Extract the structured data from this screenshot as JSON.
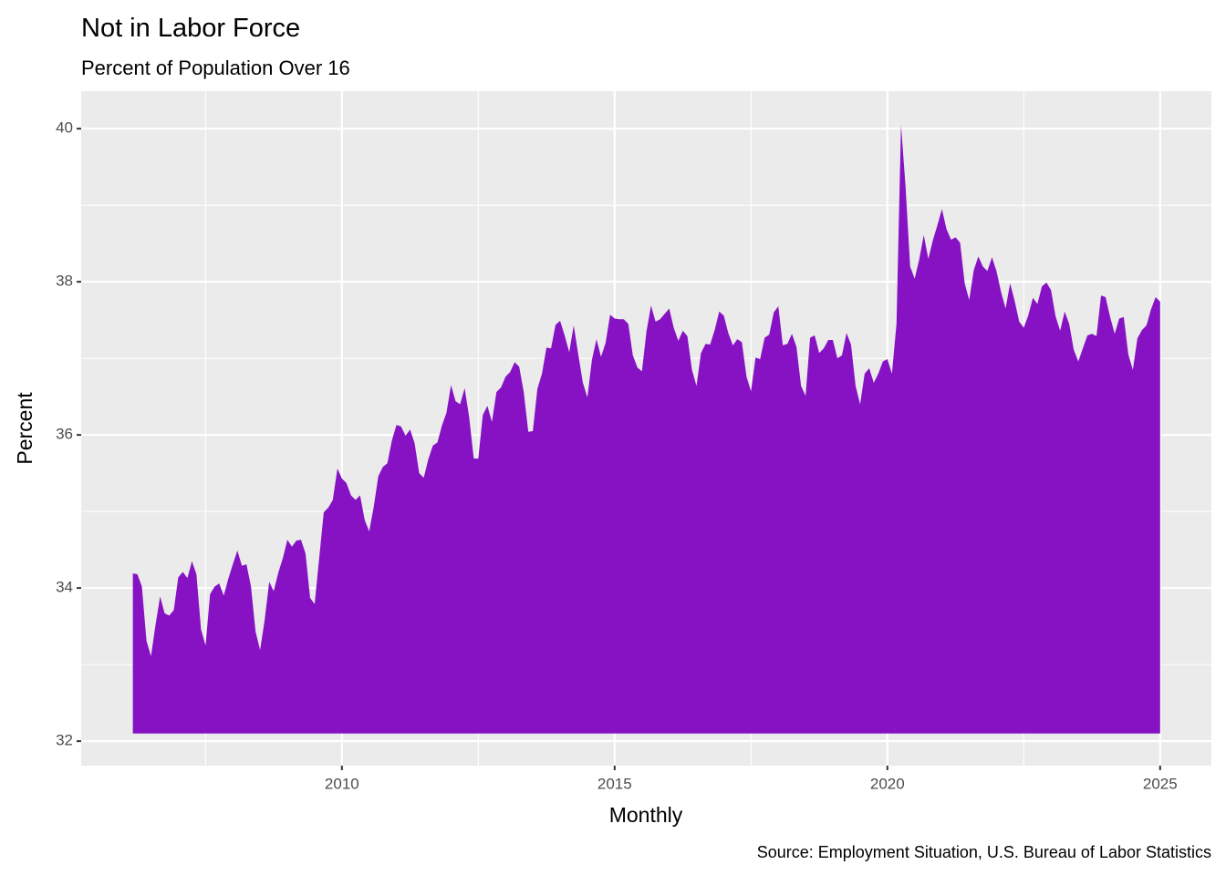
{
  "chart_data": {
    "type": "area",
    "title": "Not in Labor Force",
    "subtitle": "Percent of Population Over 16",
    "x_label": "Monthly",
    "y_label": "Percent",
    "caption": "Source: Employment Situation, U.S. Bureau of Labor Statistics",
    "color": "#8612c4",
    "grid": true,
    "baseline": 32.1,
    "xlim": [
      2005.22,
      2025.94
    ],
    "xticks": [
      2010,
      2015,
      2020,
      2025
    ],
    "ylim": [
      31.68,
      40.49
    ],
    "yticks": [
      32,
      34,
      36,
      38,
      40
    ],
    "x": [
      2006.167,
      2006.25,
      2006.333,
      2006.417,
      2006.5,
      2006.583,
      2006.667,
      2006.75,
      2006.833,
      2006.917,
      2007,
      2007.083,
      2007.167,
      2007.25,
      2007.333,
      2007.417,
      2007.5,
      2007.583,
      2007.667,
      2007.75,
      2007.833,
      2007.917,
      2008,
      2008.083,
      2008.167,
      2008.25,
      2008.333,
      2008.417,
      2008.5,
      2008.583,
      2008.667,
      2008.75,
      2008.833,
      2008.917,
      2009,
      2009.083,
      2009.167,
      2009.25,
      2009.333,
      2009.417,
      2009.5,
      2009.583,
      2009.667,
      2009.75,
      2009.833,
      2009.917,
      2010,
      2010.083,
      2010.167,
      2010.25,
      2010.333,
      2010.417,
      2010.5,
      2010.583,
      2010.667,
      2010.75,
      2010.833,
      2010.917,
      2011,
      2011.083,
      2011.167,
      2011.25,
      2011.333,
      2011.417,
      2011.5,
      2011.583,
      2011.667,
      2011.75,
      2011.833,
      2011.917,
      2012,
      2012.083,
      2012.167,
      2012.25,
      2012.333,
      2012.417,
      2012.5,
      2012.583,
      2012.667,
      2012.75,
      2012.833,
      2012.917,
      2013,
      2013.083,
      2013.167,
      2013.25,
      2013.333,
      2013.417,
      2013.5,
      2013.583,
      2013.667,
      2013.75,
      2013.833,
      2013.917,
      2014,
      2014.083,
      2014.167,
      2014.25,
      2014.333,
      2014.417,
      2014.5,
      2014.583,
      2014.667,
      2014.75,
      2014.833,
      2014.917,
      2015,
      2015.083,
      2015.167,
      2015.25,
      2015.333,
      2015.417,
      2015.5,
      2015.583,
      2015.667,
      2015.75,
      2015.833,
      2015.917,
      2016,
      2016.083,
      2016.167,
      2016.25,
      2016.333,
      2016.417,
      2016.5,
      2016.583,
      2016.667,
      2016.75,
      2016.833,
      2016.917,
      2017,
      2017.083,
      2017.167,
      2017.25,
      2017.333,
      2017.417,
      2017.5,
      2017.583,
      2017.667,
      2017.75,
      2017.833,
      2017.917,
      2018,
      2018.083,
      2018.167,
      2018.25,
      2018.333,
      2018.417,
      2018.5,
      2018.583,
      2018.667,
      2018.75,
      2018.833,
      2018.917,
      2019,
      2019.083,
      2019.167,
      2019.25,
      2019.333,
      2019.417,
      2019.5,
      2019.583,
      2019.667,
      2019.75,
      2019.833,
      2019.917,
      2020,
      2020.083,
      2020.167,
      2020.25,
      2020.333,
      2020.417,
      2020.5,
      2020.583,
      2020.667,
      2020.75,
      2020.833,
      2020.917,
      2021,
      2021.083,
      2021.167,
      2021.25,
      2021.333,
      2021.417,
      2021.5,
      2021.583,
      2021.667,
      2021.75,
      2021.833,
      2021.917,
      2022,
      2022.083,
      2022.167,
      2022.25,
      2022.333,
      2022.417,
      2022.5,
      2022.583,
      2022.667,
      2022.75,
      2022.833,
      2022.917,
      2023,
      2023.083,
      2023.167,
      2023.25,
      2023.333,
      2023.417,
      2023.5,
      2023.583,
      2023.667,
      2023.75,
      2023.833,
      2023.917,
      2024,
      2024.083,
      2024.167,
      2024.25,
      2024.333,
      2024.417,
      2024.5,
      2024.583,
      2024.667,
      2024.75,
      2024.833,
      2024.917,
      2025
    ],
    "values": [
      34.19,
      34.18,
      34.02,
      33.31,
      33.11,
      33.52,
      33.89,
      33.67,
      33.64,
      33.71,
      34.14,
      34.21,
      34.13,
      34.35,
      34.18,
      33.46,
      33.25,
      33.92,
      34.02,
      34.06,
      33.9,
      34.12,
      34.31,
      34.49,
      34.29,
      34.31,
      34.02,
      33.43,
      33.19,
      33.58,
      34.08,
      33.96,
      34.2,
      34.39,
      34.63,
      34.54,
      34.62,
      34.63,
      34.45,
      33.87,
      33.79,
      34.39,
      34.99,
      35.05,
      35.15,
      35.56,
      35.43,
      35.37,
      35.21,
      35.15,
      35.21,
      34.89,
      34.74,
      35.06,
      35.46,
      35.58,
      35.63,
      35.93,
      36.13,
      36.11,
      35.99,
      36.07,
      35.89,
      35.5,
      35.44,
      35.68,
      35.86,
      35.9,
      36.12,
      36.29,
      36.65,
      36.44,
      36.4,
      36.61,
      36.23,
      35.69,
      35.69,
      36.26,
      36.38,
      36.17,
      36.56,
      36.62,
      36.76,
      36.82,
      36.95,
      36.89,
      36.56,
      36.04,
      36.05,
      36.6,
      36.8,
      37.14,
      37.13,
      37.44,
      37.49,
      37.3,
      37.08,
      37.43,
      37.05,
      36.68,
      36.49,
      36.98,
      37.25,
      37.02,
      37.2,
      37.57,
      37.52,
      37.51,
      37.51,
      37.45,
      37.04,
      36.88,
      36.83,
      37.35,
      37.69,
      37.48,
      37.51,
      37.58,
      37.65,
      37.4,
      37.23,
      37.36,
      37.29,
      36.85,
      36.64,
      37.07,
      37.19,
      37.18,
      37.37,
      37.61,
      37.56,
      37.33,
      37.17,
      37.25,
      37.21,
      36.76,
      36.57,
      37.01,
      36.99,
      37.27,
      37.31,
      37.6,
      37.68,
      37.17,
      37.19,
      37.32,
      37.15,
      36.64,
      36.51,
      37.27,
      37.3,
      37.07,
      37.13,
      37.24,
      37.24,
      37.0,
      37.04,
      37.33,
      37.18,
      36.64,
      36.4,
      36.8,
      36.87,
      36.68,
      36.8,
      36.96,
      36.99,
      36.8,
      37.45,
      40.05,
      39.24,
      38.2,
      38.04,
      38.29,
      38.61,
      38.3,
      38.54,
      38.74,
      38.95,
      38.69,
      38.55,
      38.58,
      38.51,
      37.98,
      37.76,
      38.15,
      38.33,
      38.2,
      38.14,
      38.32,
      38.14,
      37.87,
      37.65,
      37.98,
      37.75,
      37.48,
      37.4,
      37.56,
      37.79,
      37.71,
      37.94,
      37.99,
      37.89,
      37.55,
      37.36,
      37.61,
      37.45,
      37.11,
      36.96,
      37.13,
      37.3,
      37.32,
      37.29,
      37.82,
      37.8,
      37.54,
      37.32,
      37.52,
      37.54,
      37.05,
      36.85,
      37.26,
      37.37,
      37.43,
      37.64,
      37.8,
      37.74
    ]
  }
}
